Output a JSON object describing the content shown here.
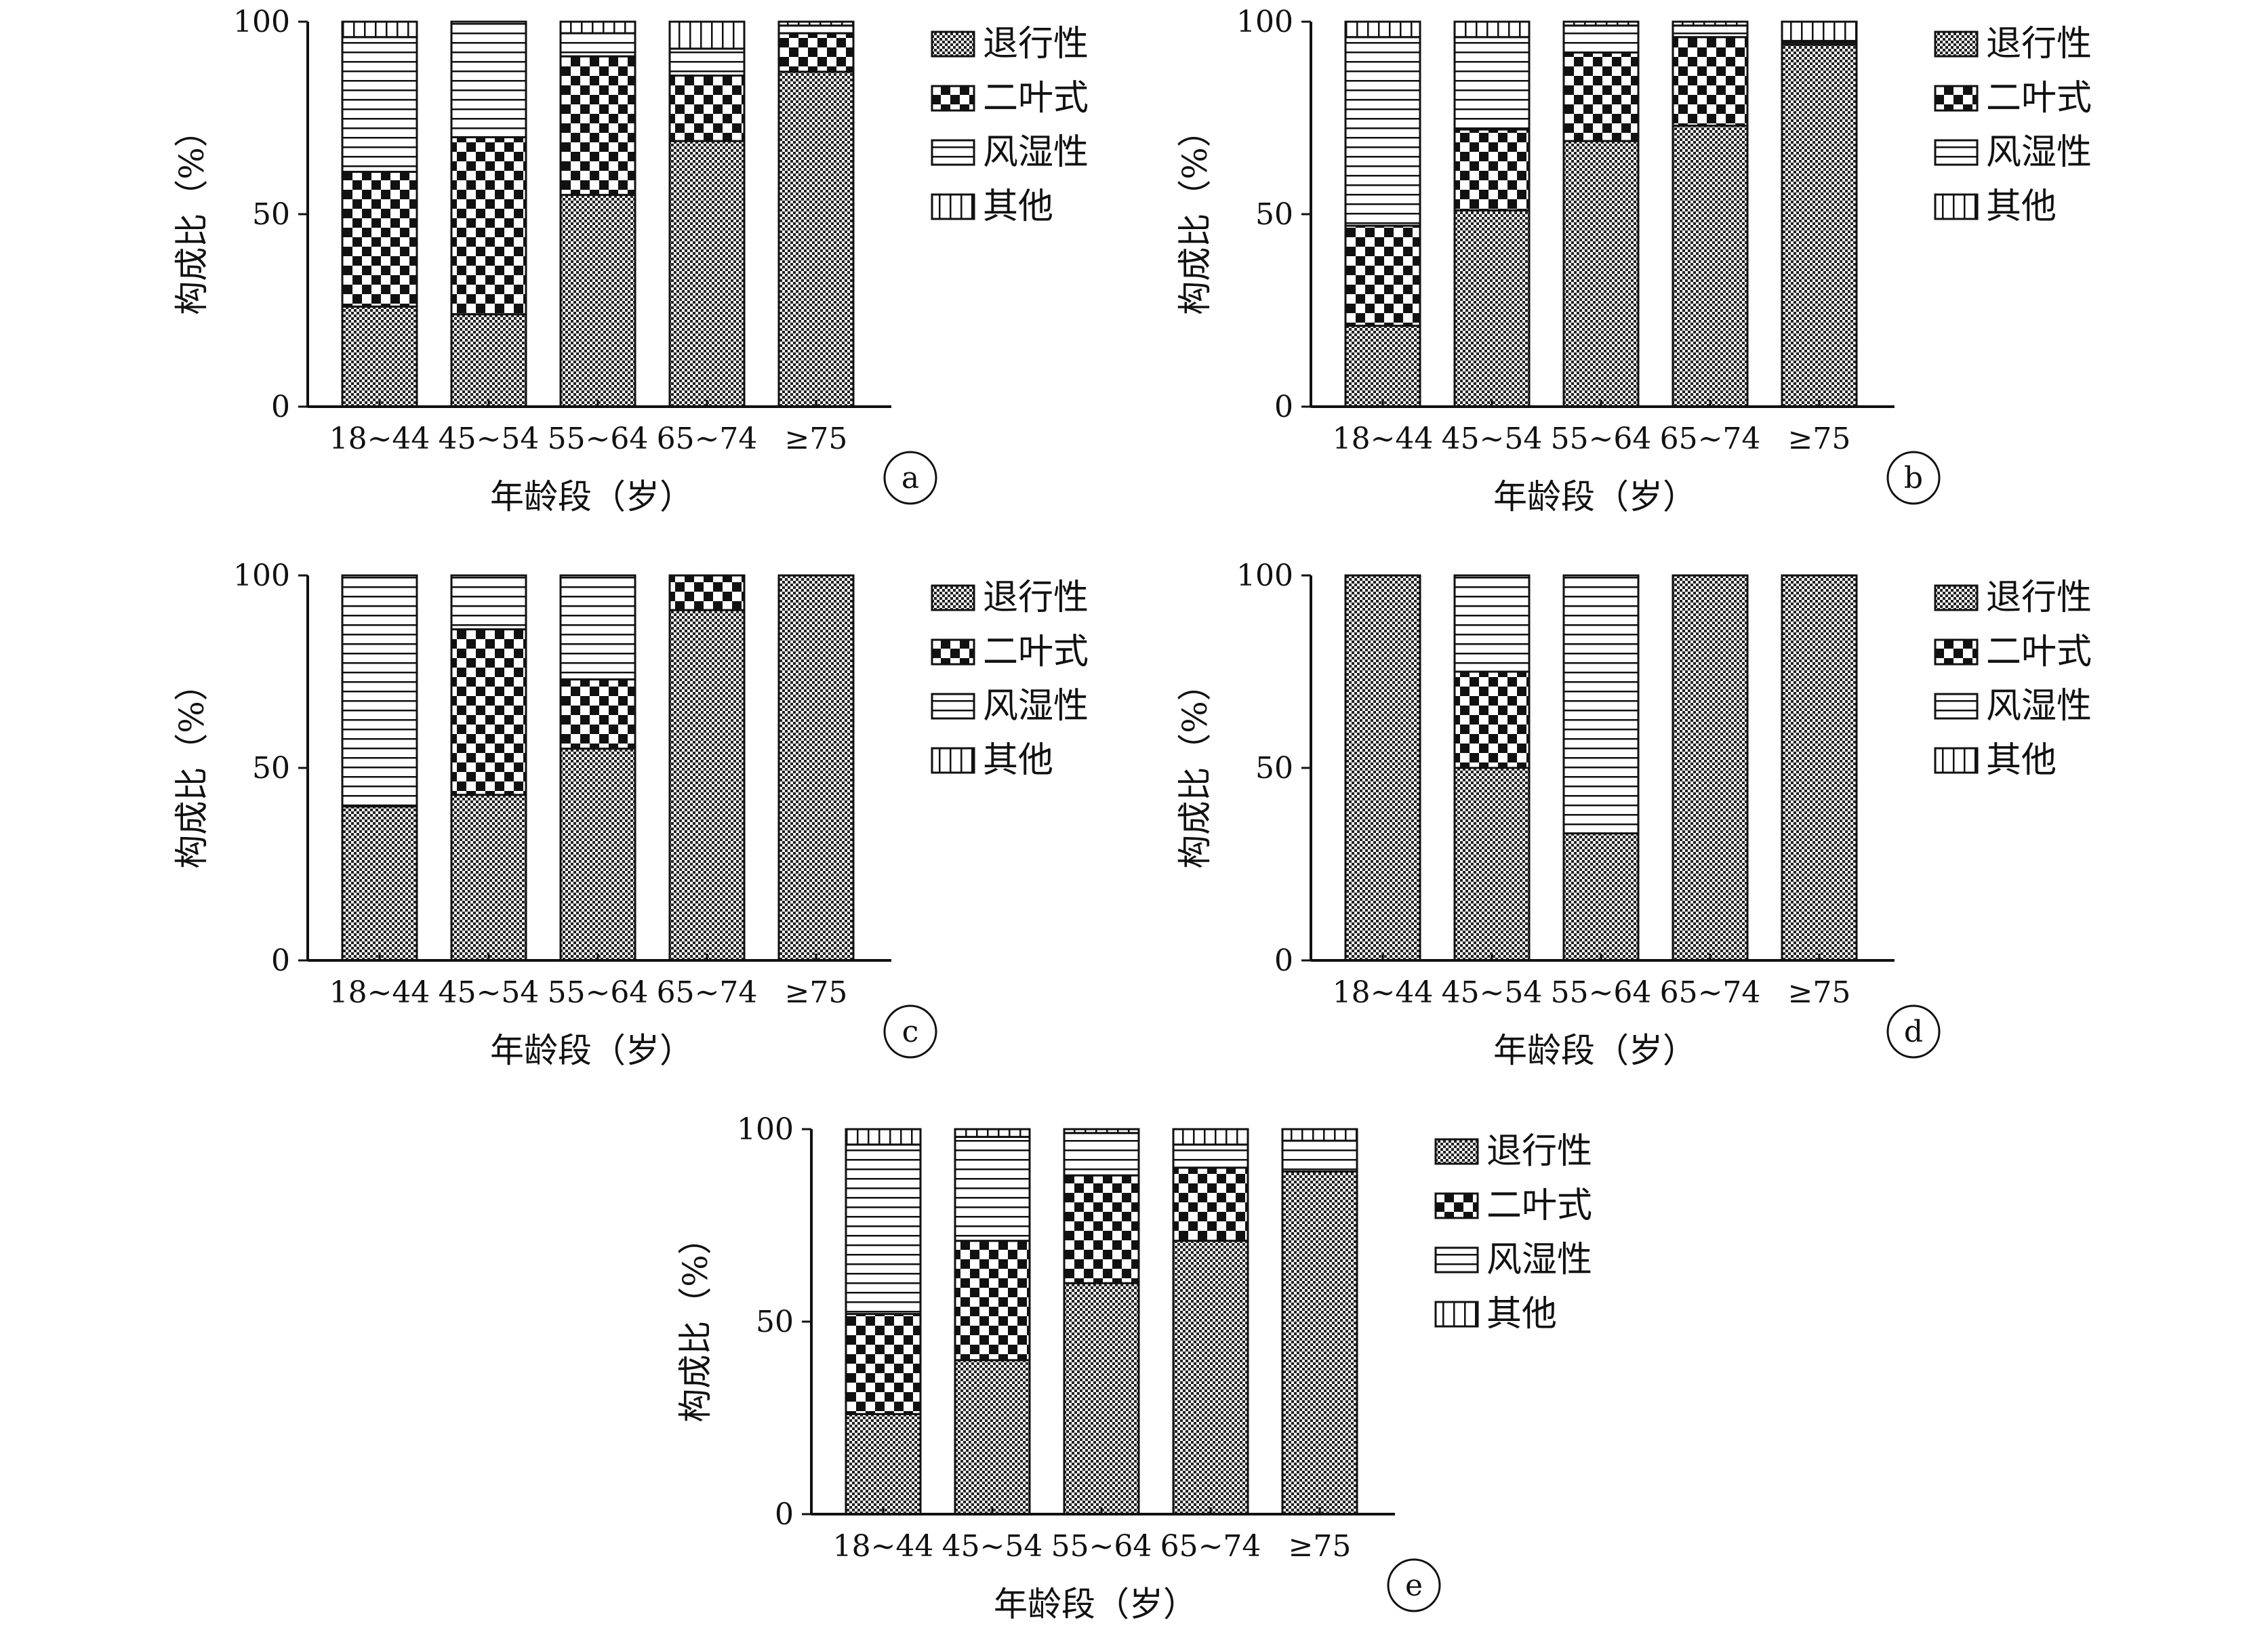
{
  "chart_data": [
    {
      "type": "bar",
      "panel": "a",
      "stacked": true,
      "categories": [
        "18~44",
        "45~54",
        "55~64",
        "65~74",
        "≥75"
      ],
      "series": [
        {
          "name": "退行性",
          "values": [
            26,
            24,
            55,
            69,
            87
          ]
        },
        {
          "name": "二叶式",
          "values": [
            35,
            46,
            36,
            17,
            10
          ]
        },
        {
          "name": "风湿性",
          "values": [
            35,
            30,
            6,
            7,
            2
          ]
        },
        {
          "name": "其他",
          "values": [
            4,
            0,
            3,
            7,
            1
          ]
        }
      ],
      "xlabel": "年龄段（岁）",
      "ylabel": "构成比（%）",
      "yticks": [
        0,
        50,
        100
      ],
      "ylim": [
        0,
        100
      ],
      "legend": "right"
    },
    {
      "type": "bar",
      "panel": "b",
      "stacked": true,
      "categories": [
        "18~44",
        "45~54",
        "55~64",
        "65~74",
        "≥75"
      ],
      "series": [
        {
          "name": "退行性",
          "values": [
            21,
            51,
            69,
            73,
            94
          ]
        },
        {
          "name": "二叶式",
          "values": [
            26,
            21,
            23,
            23,
            0
          ]
        },
        {
          "name": "风湿性",
          "values": [
            49,
            24,
            7,
            3,
            1
          ]
        },
        {
          "name": "其他",
          "values": [
            4,
            4,
            1,
            1,
            5
          ]
        }
      ],
      "xlabel": "年龄段（岁）",
      "ylabel": "构成比（%）",
      "yticks": [
        0,
        50,
        100
      ],
      "ylim": [
        0,
        100
      ],
      "legend": "right"
    },
    {
      "type": "bar",
      "panel": "c",
      "stacked": true,
      "categories": [
        "18~44",
        "45~54",
        "55~64",
        "65~74",
        "≥75"
      ],
      "series": [
        {
          "name": "退行性",
          "values": [
            40,
            43,
            55,
            91,
            100
          ]
        },
        {
          "name": "二叶式",
          "values": [
            0,
            43,
            18,
            9,
            0
          ]
        },
        {
          "name": "风湿性",
          "values": [
            60,
            14,
            27,
            0,
            0
          ]
        },
        {
          "name": "其他",
          "values": [
            0,
            0,
            0,
            0,
            0
          ]
        }
      ],
      "xlabel": "年龄段（岁）",
      "ylabel": "构成比（%）",
      "yticks": [
        0,
        50,
        100
      ],
      "ylim": [
        0,
        100
      ],
      "legend": "right"
    },
    {
      "type": "bar",
      "panel": "d",
      "stacked": true,
      "categories": [
        "18~44",
        "45~54",
        "55~64",
        "65~74",
        "≥75"
      ],
      "series": [
        {
          "name": "退行性",
          "values": [
            100,
            50,
            33,
            100,
            100
          ]
        },
        {
          "name": "二叶式",
          "values": [
            0,
            25,
            0,
            0,
            0
          ]
        },
        {
          "name": "风湿性",
          "values": [
            0,
            25,
            67,
            0,
            0
          ]
        },
        {
          "name": "其他",
          "values": [
            0,
            0,
            0,
            0,
            0
          ]
        }
      ],
      "xlabel": "年龄段（岁）",
      "ylabel": "构成比（%）",
      "yticks": [
        0,
        50,
        100
      ],
      "ylim": [
        0,
        100
      ],
      "legend": "right"
    },
    {
      "type": "bar",
      "panel": "e",
      "stacked": true,
      "categories": [
        "18~44",
        "45~54",
        "55~64",
        "65~74",
        "≥75"
      ],
      "series": [
        {
          "name": "退行性",
          "values": [
            26,
            40,
            60,
            71,
            89
          ]
        },
        {
          "name": "二叶式",
          "values": [
            26,
            31,
            28,
            19,
            0
          ]
        },
        {
          "name": "风湿性",
          "values": [
            44,
            27,
            11,
            6,
            8
          ]
        },
        {
          "name": "其他",
          "values": [
            4,
            2,
            1,
            4,
            3
          ]
        }
      ],
      "xlabel": "年龄段（岁）",
      "ylabel": "构成比（%）",
      "yticks": [
        0,
        50,
        100
      ],
      "ylim": [
        0,
        100
      ],
      "legend": "right"
    }
  ]
}
